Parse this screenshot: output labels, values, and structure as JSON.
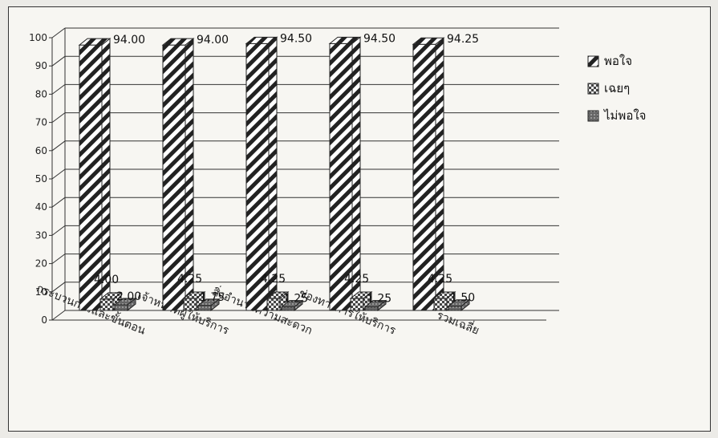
{
  "chart_data": {
    "type": "bar",
    "categories": [
      "กระบวนการและขั้นตอน",
      "เจ้าหน้าที่ผู้ให้บริการ",
      "สิ่งอำนวยความสะดวก",
      "ช่องทางการให้บริการ",
      "รวมเฉลี่ย"
    ],
    "series": [
      {
        "name": "พอใจ",
        "values": [
          94.0,
          94.0,
          94.5,
          94.5,
          94.25
        ],
        "labels": [
          "94.00",
          "94.00",
          "94.50",
          "94.50",
          "94.25"
        ],
        "pattern": "diag"
      },
      {
        "name": "เฉยๆ",
        "values": [
          4.0,
          4.25,
          4.25,
          4.25,
          4.25
        ],
        "labels": [
          "4.00",
          "4.25",
          "4.25",
          "4.25",
          "4.25"
        ],
        "pattern": "check"
      },
      {
        "name": "ไม่พอใจ",
        "values": [
          2.0,
          1.75,
          1.25,
          1.25,
          1.5
        ],
        "labels": [
          "2.00",
          "1.75",
          "1.25",
          "1.25",
          "1.50"
        ],
        "pattern": "dots"
      }
    ],
    "yticks": [
      0,
      10,
      20,
      30,
      40,
      50,
      60,
      70,
      80,
      90,
      100
    ],
    "ylim": [
      0,
      100
    ],
    "grid": true,
    "legend": "right",
    "colors": {
      "bar_face": "#ffffff",
      "bar_ink": "#222222",
      "gridline": "#333333"
    }
  }
}
